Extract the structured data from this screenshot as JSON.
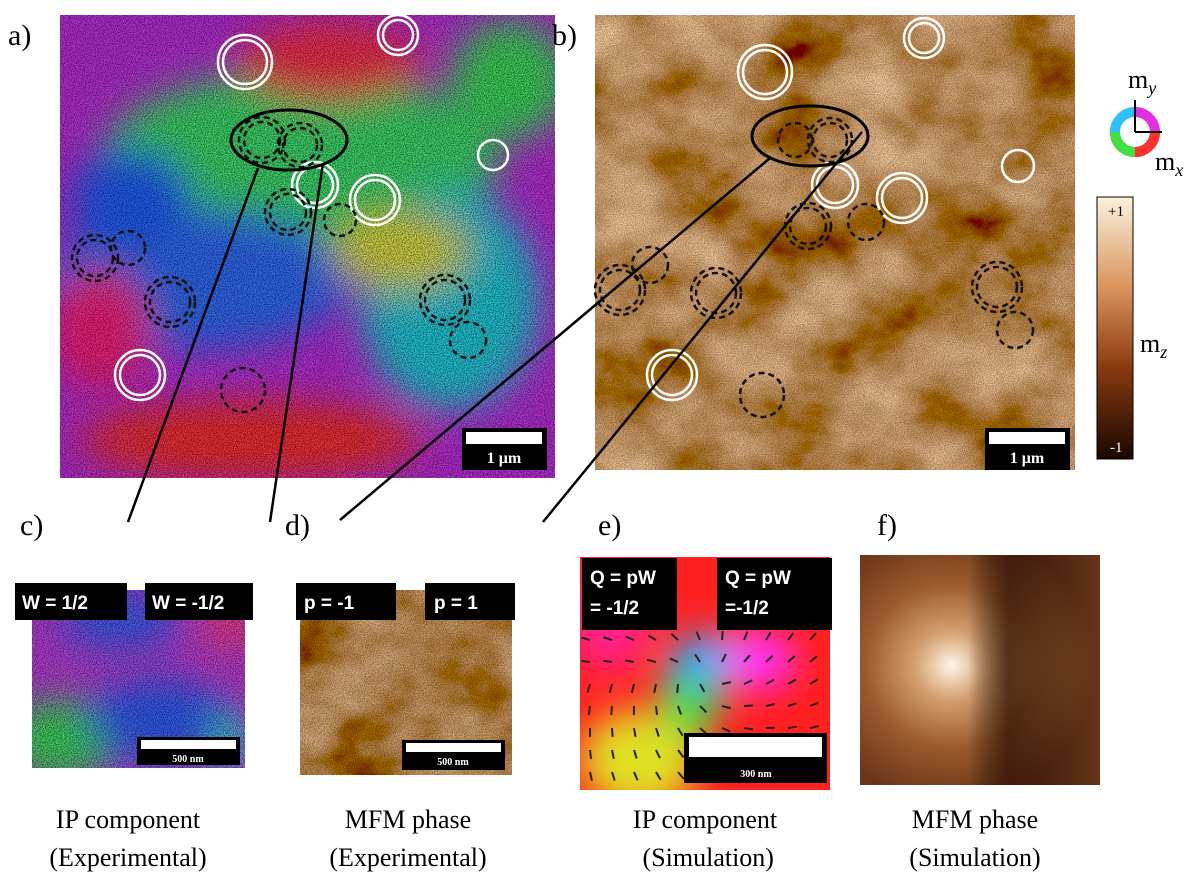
{
  "panels": {
    "a": {
      "label": "a)",
      "scale_bar": "1 μm"
    },
    "b": {
      "label": "b)",
      "scale_bar": "1 μm"
    },
    "c": {
      "label": "c)",
      "tags": [
        "W = 1/2",
        "W = -1/2"
      ],
      "scale_bar": "500 nm",
      "caption": [
        "IP component",
        "(Experimental)"
      ]
    },
    "d": {
      "label": "d)",
      "tags": [
        "p = -1",
        "p = 1"
      ],
      "scale_bar": "500 nm",
      "caption": [
        "MFM phase",
        "(Experimental)"
      ]
    },
    "e": {
      "label": "e)",
      "tags": [
        [
          "Q = pW",
          "= -1/2"
        ],
        [
          "Q = pW",
          "=-1/2"
        ]
      ],
      "scale_bar": "300 nm",
      "caption": [
        "IP component",
        " (Simulation)"
      ]
    },
    "f": {
      "label": "f)",
      "caption": [
        "MFM phase",
        "(Simulation)"
      ]
    }
  },
  "legend": {
    "my": "m",
    "my_sub": "y",
    "mx": "m",
    "mx_sub": "x",
    "mz": "m",
    "mz_sub": "z",
    "max": "+1",
    "min": "-1"
  }
}
